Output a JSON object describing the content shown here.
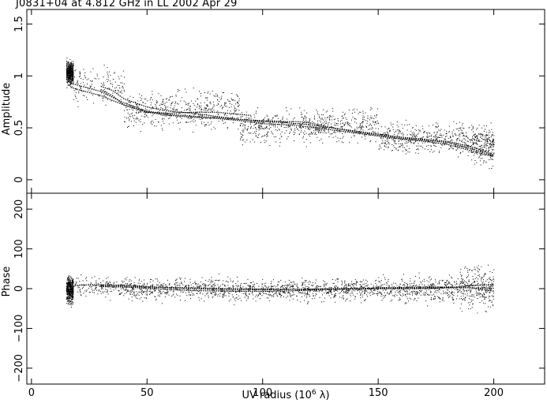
{
  "title": "J0831+04 at 4.812 GHz in LL  2002 Apr 29",
  "xlabel_main": "UV radius  (10",
  "xlabel_exp": "6",
  "xlabel_tail": " λ)",
  "colors": {
    "points": "#000000",
    "model": "#000000",
    "frame": "#000000",
    "background": "#ffffff"
  },
  "chart_data": [
    {
      "type": "scatter",
      "panel": "top",
      "ylabel": "Amplitude",
      "xlim": [
        -2,
        222
      ],
      "ylim": [
        -0.13,
        1.64
      ],
      "x_ticks": [
        0,
        50,
        100,
        150,
        200
      ],
      "y_ticks": [
        0,
        0.5,
        1,
        1.5
      ],
      "y_tick_labels": [
        "0",
        "0.5",
        "1",
        "1.5"
      ],
      "scatter_bands": [
        {
          "x_range": [
            15,
            18
          ],
          "y_center": 1.03,
          "y_spread": 0.09,
          "count": 500
        },
        {
          "x_range": [
            18,
            40
          ],
          "y_center": 0.9,
          "y_spread": 0.14,
          "count": 150
        },
        {
          "x_range": [
            40,
            90
          ],
          "y_center": 0.68,
          "y_spread": 0.14,
          "count": 500
        },
        {
          "x_range": [
            90,
            150
          ],
          "y_center": 0.52,
          "y_spread": 0.13,
          "count": 650
        },
        {
          "x_range": [
            150,
            190
          ],
          "y_center": 0.4,
          "y_spread": 0.12,
          "count": 450
        },
        {
          "x_range": [
            190,
            200
          ],
          "y_center": 0.34,
          "y_spread": 0.15,
          "count": 260
        }
      ],
      "model_curves": [
        {
          "name": "",
          "x": [
            17,
            20,
            25,
            30,
            40,
            50,
            60,
            70,
            80,
            90,
            100,
            110,
            120,
            130,
            140,
            150,
            160,
            170,
            180,
            190,
            200
          ],
          "y": [
            0.93,
            0.91,
            0.88,
            0.85,
            0.74,
            0.66,
            0.63,
            0.61,
            0.6,
            0.58,
            0.56,
            0.55,
            0.53,
            0.5,
            0.46,
            0.43,
            0.4,
            0.38,
            0.36,
            0.3,
            0.23
          ]
        },
        {
          "name": "",
          "x": [
            17,
            20,
            25,
            30,
            40,
            50,
            60,
            70,
            80,
            90,
            100,
            110,
            120,
            130,
            140,
            150,
            160,
            170,
            180,
            190,
            200
          ],
          "y": [
            0.89,
            0.87,
            0.84,
            0.81,
            0.72,
            0.65,
            0.62,
            0.6,
            0.59,
            0.57,
            0.54,
            0.53,
            0.51,
            0.48,
            0.45,
            0.42,
            0.39,
            0.37,
            0.34,
            0.28,
            0.22
          ]
        },
        {
          "name": "",
          "x": [
            30,
            35,
            40,
            50,
            60,
            70,
            80,
            90,
            100,
            110,
            115,
            120,
            130,
            140,
            150,
            160,
            170,
            180,
            190,
            200
          ],
          "y": [
            0.9,
            0.86,
            0.78,
            0.7,
            0.66,
            0.64,
            0.61,
            0.58,
            0.57,
            0.56,
            0.56,
            0.55,
            0.5,
            0.47,
            0.44,
            0.41,
            0.39,
            0.37,
            0.32,
            0.24
          ]
        },
        {
          "name": "",
          "x": [
            30,
            35,
            40,
            50,
            60,
            70,
            80,
            90,
            95
          ],
          "y": [
            0.87,
            0.81,
            0.72,
            0.65,
            0.64,
            0.65,
            0.65,
            0.63,
            0.62
          ]
        }
      ]
    },
    {
      "type": "scatter",
      "panel": "bottom",
      "ylabel": "Phase",
      "xlim": [
        -2,
        222
      ],
      "ylim": [
        -240,
        240
      ],
      "x_ticks": [
        0,
        50,
        100,
        150,
        200
      ],
      "x_tick_labels": [
        "0",
        "50",
        "100",
        "150",
        "200"
      ],
      "y_ticks": [
        -200,
        -100,
        0,
        100,
        200
      ],
      "y_tick_labels": [
        "−200",
        "−100",
        "0",
        "100",
        "200"
      ],
      "scatter_bands": [
        {
          "x_range": [
            15,
            18
          ],
          "y_center": -2,
          "y_spread": 26,
          "count": 500
        },
        {
          "x_range": [
            18,
            40
          ],
          "y_center": 4,
          "y_spread": 22,
          "count": 150
        },
        {
          "x_range": [
            40,
            90
          ],
          "y_center": 0,
          "y_spread": 24,
          "count": 500
        },
        {
          "x_range": [
            90,
            150
          ],
          "y_center": -2,
          "y_spread": 22,
          "count": 650
        },
        {
          "x_range": [
            150,
            185
          ],
          "y_center": 0,
          "y_spread": 26,
          "count": 400
        },
        {
          "x_range": [
            185,
            200
          ],
          "y_center": 5,
          "y_spread": 42,
          "count": 310
        }
      ],
      "model_curves": [
        {
          "name": "",
          "x": [
            17,
            25,
            30,
            40,
            50,
            60,
            70,
            80,
            90,
            100,
            110,
            120,
            130,
            140,
            150,
            160,
            170,
            180,
            190,
            200
          ],
          "y": [
            7,
            10,
            10,
            9,
            5,
            2,
            0,
            -2,
            -3,
            -3,
            -2,
            -1,
            0,
            0,
            0,
            0,
            0,
            2,
            8,
            10
          ]
        },
        {
          "name": "",
          "x": [
            30,
            40,
            50,
            60,
            70,
            80,
            90,
            100,
            110,
            120,
            130,
            140,
            150,
            160,
            170,
            180,
            190,
            200
          ],
          "y": [
            5,
            4,
            1,
            -2,
            -5,
            -6,
            -7,
            -7,
            -6,
            -4,
            -2,
            0,
            2,
            3,
            4,
            4,
            2,
            -6
          ]
        },
        {
          "name": "",
          "x": [
            30,
            40,
            50,
            60,
            70,
            80,
            90,
            100,
            120,
            140,
            160,
            180,
            200
          ],
          "y": [
            8,
            6,
            4,
            3,
            2,
            1,
            0,
            -1,
            -2,
            -1,
            1,
            3,
            1
          ]
        }
      ]
    }
  ]
}
